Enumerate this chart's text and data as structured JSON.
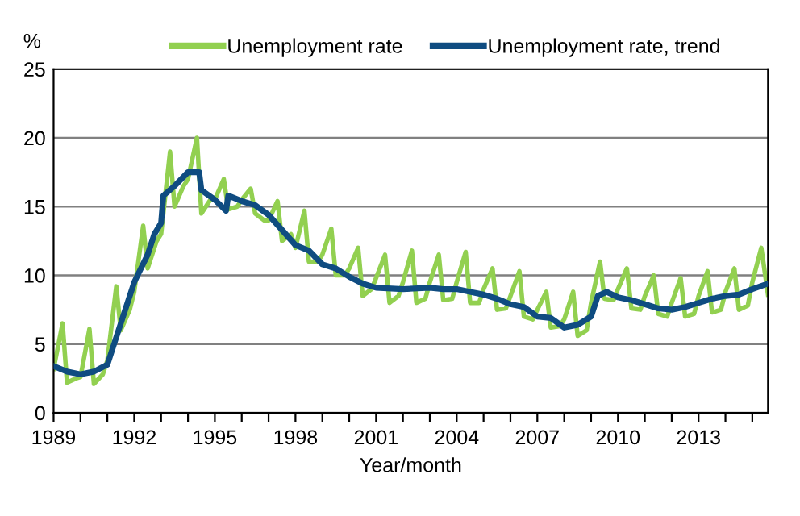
{
  "chart_data": {
    "type": "line",
    "ylabel": "%",
    "xlabel": "Year/month",
    "legend": "top",
    "grid": "y",
    "marker": "none",
    "line_style": "solid",
    "xlim": [
      "1989-01",
      "2015-08"
    ],
    "ylim": [
      0,
      25
    ],
    "yticks": [
      0,
      5,
      10,
      15,
      20,
      25
    ],
    "xticks": [
      "1989",
      {
        "value": "1990",
        "label": null
      },
      {
        "value": "1991",
        "label": null
      },
      "1992",
      {
        "value": "1993",
        "label": null
      },
      {
        "value": "1994",
        "label": null
      },
      "1995",
      {
        "value": "1996",
        "label": null
      },
      {
        "value": "1997",
        "label": null
      },
      "1998",
      {
        "value": "1999",
        "label": null
      },
      {
        "value": "2000",
        "label": null
      },
      "2001",
      {
        "value": "2002",
        "label": null
      },
      {
        "value": "2003",
        "label": null
      },
      "2004",
      {
        "value": "2005",
        "label": null
      },
      {
        "value": "2006",
        "label": null
      },
      "2007",
      {
        "value": "2008",
        "label": null
      },
      {
        "value": "2009",
        "label": null
      },
      "2010",
      {
        "value": "2011",
        "label": null
      },
      {
        "value": "2012",
        "label": null
      },
      "2013",
      {
        "value": "2014",
        "label": null
      },
      {
        "value": "2015",
        "label": null
      }
    ],
    "series": [
      {
        "name": "Unemployment rate",
        "color": "#92d050",
        "x": [
          "1989-01",
          "1989-05",
          "1989-07",
          "1989-11",
          "1990-01",
          "1990-05",
          "1990-07",
          "1990-11",
          "1991-01",
          "1991-05",
          "1991-07",
          "1991-11",
          "1992-01",
          "1992-05",
          "1992-07",
          "1992-11",
          "1993-01",
          "1993-05",
          "1993-07",
          "1993-11",
          "1994-01",
          "1994-05",
          "1994-07",
          "1994-11",
          "1995-01",
          "1995-05",
          "1995-07",
          "1995-11",
          "1996-01",
          "1996-05",
          "1996-07",
          "1996-11",
          "1997-01",
          "1997-05",
          "1997-07",
          "1997-11",
          "1998-01",
          "1998-05",
          "1998-07",
          "1998-11",
          "1999-01",
          "1999-05",
          "1999-07",
          "1999-11",
          "2000-01",
          "2000-05",
          "2000-07",
          "2000-11",
          "2001-01",
          "2001-05",
          "2001-07",
          "2001-11",
          "2002-01",
          "2002-05",
          "2002-07",
          "2002-11",
          "2003-01",
          "2003-05",
          "2003-07",
          "2003-11",
          "2004-01",
          "2004-05",
          "2004-07",
          "2004-11",
          "2005-01",
          "2005-05",
          "2005-07",
          "2005-11",
          "2006-01",
          "2006-05",
          "2006-07",
          "2006-11",
          "2007-01",
          "2007-05",
          "2007-07",
          "2007-11",
          "2008-01",
          "2008-05",
          "2008-07",
          "2008-11",
          "2009-01",
          "2009-05",
          "2009-07",
          "2009-11",
          "2010-01",
          "2010-05",
          "2010-07",
          "2010-11",
          "2011-01",
          "2011-05",
          "2011-07",
          "2011-11",
          "2012-01",
          "2012-05",
          "2012-07",
          "2012-11",
          "2013-01",
          "2013-05",
          "2013-07",
          "2013-11",
          "2014-01",
          "2014-05",
          "2014-07",
          "2014-11",
          "2015-01",
          "2015-05",
          "2015-08"
        ],
        "values": [
          3.2,
          6.5,
          2.2,
          2.5,
          2.6,
          6.1,
          2.1,
          2.8,
          3.8,
          9.2,
          6.0,
          7.5,
          8.8,
          13.6,
          10.5,
          12.5,
          13.0,
          19.0,
          15.0,
          16.5,
          17.0,
          20.0,
          14.5,
          15.5,
          15.5,
          17.0,
          14.8,
          15.0,
          15.5,
          16.3,
          14.5,
          14.0,
          14.0,
          15.4,
          12.5,
          13.0,
          12.0,
          14.7,
          11.0,
          11.0,
          11.5,
          13.4,
          10.0,
          10.0,
          10.5,
          12.0,
          8.5,
          9.0,
          9.8,
          11.5,
          8.0,
          8.5,
          9.5,
          11.8,
          8.0,
          8.3,
          9.5,
          11.5,
          8.2,
          8.3,
          9.5,
          11.7,
          8.0,
          8.0,
          9.0,
          10.5,
          7.5,
          7.6,
          8.5,
          10.3,
          7.0,
          6.8,
          7.5,
          8.8,
          6.2,
          6.3,
          6.8,
          8.8,
          5.6,
          6.0,
          8.0,
          11.0,
          8.3,
          8.2,
          9.0,
          10.5,
          7.6,
          7.5,
          8.5,
          10.0,
          7.2,
          7.0,
          8.0,
          9.8,
          7.0,
          7.2,
          8.5,
          10.3,
          7.3,
          7.5,
          8.8,
          10.5,
          7.5,
          7.8,
          9.5,
          12.0,
          8.6
        ]
      },
      {
        "name": "Unemployment rate, trend",
        "color": "#0f4c81",
        "x": [
          "1989-01",
          "1989-07",
          "1990-01",
          "1990-07",
          "1991-01",
          "1991-04",
          "1991-09",
          "1992-01",
          "1992-07",
          "1992-10",
          "1993-01",
          "1993-02",
          "1993-07",
          "1994-01",
          "1994-06",
          "1994-07",
          "1995-01",
          "1995-06",
          "1995-07",
          "1996-01",
          "1996-07",
          "1997-01",
          "1997-07",
          "1998-01",
          "1998-07",
          "1999-01",
          "1999-07",
          "2000-01",
          "2000-07",
          "2001-01",
          "2002-01",
          "2003-01",
          "2003-07",
          "2004-01",
          "2004-07",
          "2005-01",
          "2005-07",
          "2006-01",
          "2006-07",
          "2007-01",
          "2007-07",
          "2008-01",
          "2008-07",
          "2009-01",
          "2009-04",
          "2009-08",
          "2010-01",
          "2010-07",
          "2011-01",
          "2011-07",
          "2012-01",
          "2012-07",
          "2013-01",
          "2013-07",
          "2014-01",
          "2014-07",
          "2015-01",
          "2015-08"
        ],
        "values": [
          3.4,
          3.0,
          2.8,
          3.0,
          3.5,
          5.0,
          7.5,
          9.5,
          11.5,
          13.0,
          13.8,
          15.8,
          16.5,
          17.5,
          17.5,
          16.2,
          15.5,
          14.7,
          15.8,
          15.4,
          15.1,
          14.4,
          13.3,
          12.2,
          11.8,
          10.8,
          10.5,
          9.9,
          9.4,
          9.1,
          9.0,
          9.1,
          9.0,
          9.0,
          8.8,
          8.6,
          8.3,
          7.9,
          7.7,
          7.0,
          6.9,
          6.2,
          6.4,
          7.0,
          8.5,
          8.8,
          8.4,
          8.2,
          7.9,
          7.6,
          7.5,
          7.7,
          8.0,
          8.3,
          8.5,
          8.6,
          9.0,
          9.4
        ]
      }
    ]
  }
}
